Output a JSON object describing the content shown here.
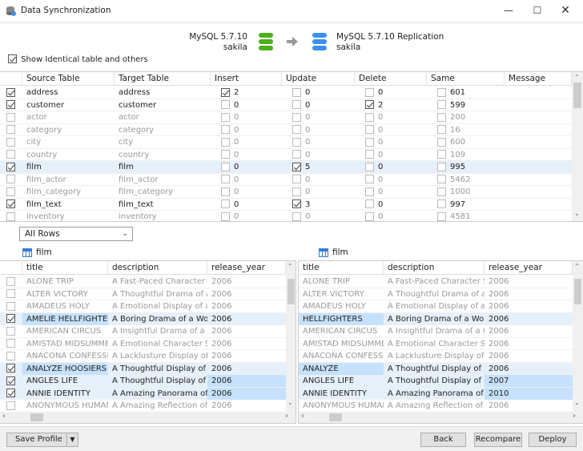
{
  "window": {
    "title": "Data Synchronization",
    "app_icon": "sync-db-icon",
    "controls": [
      "minimize",
      "maximize",
      "close"
    ]
  },
  "source": {
    "server": "MySQL 5.7.10",
    "database": "sakila",
    "icon_color": "#4caf1a"
  },
  "target": {
    "server": "MySQL 5.7.10 Replication",
    "database": "sakila",
    "icon_color": "#3b8fe8"
  },
  "options": {
    "show_identical_label": "Show Identical table and others",
    "show_identical_checked": true
  },
  "compare_grid": {
    "columns": [
      "Source Table",
      "Target Table",
      "Insert",
      "Update",
      "Delete",
      "Same",
      "Message"
    ],
    "rows": [
      {
        "checked": true,
        "active": true,
        "source": "address",
        "target": "address",
        "insert": [
          true,
          "2"
        ],
        "update": [
          false,
          "0"
        ],
        "delete": [
          false,
          "0"
        ],
        "same": [
          false,
          "601"
        ]
      },
      {
        "checked": true,
        "active": true,
        "source": "customer",
        "target": "customer",
        "insert": [
          false,
          "0"
        ],
        "update": [
          false,
          "0"
        ],
        "delete": [
          true,
          "2"
        ],
        "same": [
          false,
          "599"
        ]
      },
      {
        "checked": false,
        "active": false,
        "source": "actor",
        "target": "actor",
        "insert": [
          false,
          "0"
        ],
        "update": [
          false,
          "0"
        ],
        "delete": [
          false,
          "0"
        ],
        "same": [
          false,
          "200"
        ]
      },
      {
        "checked": false,
        "active": false,
        "source": "category",
        "target": "category",
        "insert": [
          false,
          "0"
        ],
        "update": [
          false,
          "0"
        ],
        "delete": [
          false,
          "0"
        ],
        "same": [
          false,
          "16"
        ]
      },
      {
        "checked": false,
        "active": false,
        "source": "city",
        "target": "city",
        "insert": [
          false,
          "0"
        ],
        "update": [
          false,
          "0"
        ],
        "delete": [
          false,
          "0"
        ],
        "same": [
          false,
          "600"
        ]
      },
      {
        "checked": false,
        "active": false,
        "source": "country",
        "target": "country",
        "insert": [
          false,
          "0"
        ],
        "update": [
          false,
          "0"
        ],
        "delete": [
          false,
          "0"
        ],
        "same": [
          false,
          "109"
        ]
      },
      {
        "checked": true,
        "active": true,
        "selected": true,
        "source": "film",
        "target": "film",
        "insert": [
          false,
          "0"
        ],
        "update": [
          true,
          "5"
        ],
        "delete": [
          false,
          "0"
        ],
        "same": [
          false,
          "995"
        ]
      },
      {
        "checked": false,
        "active": false,
        "source": "film_actor",
        "target": "film_actor",
        "insert": [
          false,
          "0"
        ],
        "update": [
          false,
          "0"
        ],
        "delete": [
          false,
          "0"
        ],
        "same": [
          false,
          "5462"
        ]
      },
      {
        "checked": false,
        "active": false,
        "source": "film_category",
        "target": "film_category",
        "insert": [
          false,
          "0"
        ],
        "update": [
          false,
          "0"
        ],
        "delete": [
          false,
          "0"
        ],
        "same": [
          false,
          "1000"
        ]
      },
      {
        "checked": true,
        "active": true,
        "source": "film_text",
        "target": "film_text",
        "insert": [
          false,
          "0"
        ],
        "update": [
          true,
          "3"
        ],
        "delete": [
          false,
          "0"
        ],
        "same": [
          false,
          "997"
        ]
      },
      {
        "checked": false,
        "active": false,
        "source": "inventory",
        "target": "inventory",
        "insert": [
          false,
          "0"
        ],
        "update": [
          false,
          "0"
        ],
        "delete": [
          false,
          "0"
        ],
        "same": [
          false,
          "4581"
        ]
      }
    ]
  },
  "filter": {
    "selected": "All Rows"
  },
  "left_table": {
    "name": "film"
  },
  "right_table": {
    "name": "film"
  },
  "record_columns": [
    "title",
    "description",
    "release_year"
  ],
  "left_rows": [
    {
      "checked": false,
      "active": false,
      "title": "ALONE TRIP",
      "description": "A Fast-Paced Character Stuc",
      "year": "2006"
    },
    {
      "checked": false,
      "active": false,
      "title": "ALTER VICTORY",
      "description": "A Thoughtful Drama of a Cc",
      "year": "2006"
    },
    {
      "checked": false,
      "active": false,
      "title": "AMADEUS HOLY",
      "description": "A Emotional Display of a Pic",
      "year": "2006"
    },
    {
      "checked": true,
      "active": true,
      "title": "AMELIE HELLFIGHTERS",
      "description": "A Boring Drama of a Woma",
      "year": "2006",
      "diff": "title"
    },
    {
      "checked": false,
      "active": false,
      "title": "AMERICAN CIRCUS",
      "description": "A Insightful Drama of a Girl",
      "year": "2006"
    },
    {
      "checked": false,
      "active": false,
      "title": "AMISTAD MIDSUMMER",
      "description": "A Emotional Character Stud",
      "year": "2006"
    },
    {
      "checked": false,
      "active": false,
      "title": "ANACONA CONFESSIO",
      "description": "A Lacklusture Display of a D",
      "year": "2006"
    },
    {
      "checked": true,
      "active": true,
      "title": "ANALYZE HOOSIERS",
      "description": "A Thoughtful Display of a E",
      "year": "2006",
      "diff": "title"
    },
    {
      "checked": true,
      "active": true,
      "title": "ANGLES LIFE",
      "description": "A Thoughtful Display of a W",
      "year": "2006",
      "diff": "year"
    },
    {
      "checked": true,
      "active": true,
      "title": "ANNIE IDENTITY",
      "description": "A Amazing Panorama of a P",
      "year": "2006",
      "diff": "year"
    },
    {
      "checked": false,
      "active": false,
      "title": "ANONYMOUS HUMAN",
      "description": "A Amazing Reflection of a",
      "year": "2006"
    }
  ],
  "right_rows": [
    {
      "active": false,
      "title": "ALONE TRIP",
      "description": "A Fast-Paced Character Stuc",
      "year": "2006"
    },
    {
      "active": false,
      "title": "ALTER VICTORY",
      "description": "A Thoughtful Drama of a Cc",
      "year": "2006"
    },
    {
      "active": false,
      "title": "AMADEUS HOLY",
      "description": "A Emotional Display of a Pic",
      "year": "2006"
    },
    {
      "active": true,
      "title": "HELLFIGHTERS",
      "description": "A Boring Drama of a Woma",
      "year": "2006",
      "diff": "title"
    },
    {
      "active": false,
      "title": "AMERICAN CIRCUS",
      "description": "A Insightful Drama of a Girl",
      "year": "2006"
    },
    {
      "active": false,
      "title": "AMISTAD MIDSUMMER",
      "description": "A Emotional Character Stud",
      "year": "2006"
    },
    {
      "active": false,
      "title": "ANACONA CONFESSIO",
      "description": "A Lacklusture Display of a D",
      "year": "2006"
    },
    {
      "active": true,
      "title": "ANALYZE",
      "description": "A Thoughtful Display of a E",
      "year": "2006",
      "diff": "title"
    },
    {
      "active": true,
      "title": "ANGLES LIFE",
      "description": "A Thoughtful Display of a W",
      "year": "2007",
      "diff": "year"
    },
    {
      "active": true,
      "title": "ANNIE IDENTITY",
      "description": "A Amazing Panorama of a P",
      "year": "2010",
      "diff": "year"
    },
    {
      "active": false,
      "title": "ANONYMOUS HUMAN",
      "description": "A Amazing Reflection of a",
      "year": "2006"
    }
  ],
  "footer": {
    "save_profile": "Save Profile",
    "back": "Back",
    "recompare": "Recompare",
    "deploy": "Deploy"
  }
}
